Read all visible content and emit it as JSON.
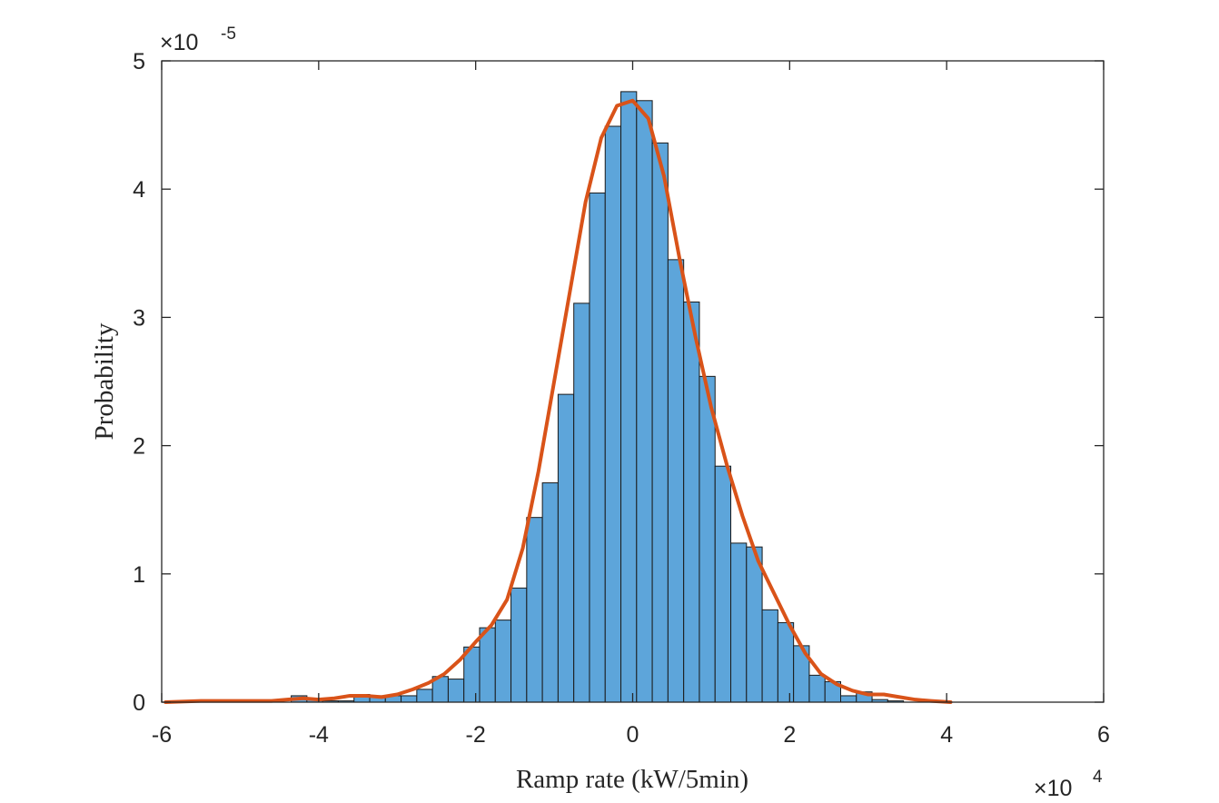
{
  "chart_data": {
    "type": "bar",
    "title": "",
    "xlabel": "Ramp rate (kW/5min)",
    "ylabel": "Probability",
    "x_multiplier": "×10",
    "x_multiplier_exp": "4",
    "y_multiplier": "×10",
    "y_multiplier_exp": "-5",
    "xlim": [
      -6,
      6
    ],
    "ylim": [
      0,
      5
    ],
    "x_ticks": [
      "-6",
      "-4",
      "-2",
      "0",
      "2",
      "4",
      "6"
    ],
    "y_ticks": [
      "0",
      "1",
      "2",
      "3",
      "4",
      "5"
    ],
    "grid": false,
    "legend": false,
    "histogram": {
      "bin_start": -4.35,
      "bin_width": 0.2,
      "values": [
        0.05,
        0.02,
        0.01,
        0.01,
        0.06,
        0.05,
        0.05,
        0.05,
        0.1,
        0.2,
        0.18,
        0.43,
        0.58,
        0.64,
        0.89,
        1.44,
        1.71,
        2.4,
        3.11,
        3.97,
        4.49,
        4.76,
        4.69,
        4.36,
        3.45,
        3.12,
        2.54,
        1.84,
        1.24,
        1.21,
        0.72,
        0.62,
        0.44,
        0.21,
        0.16,
        0.05,
        0.08,
        0.02,
        0.01
      ],
      "color": "#5DA5DA",
      "edge_color": "#1a1a1a"
    },
    "series": [
      {
        "type": "line",
        "color": "#D95319",
        "x": [
          -5.95,
          -5.5,
          -5.0,
          -4.6,
          -4.4,
          -4.2,
          -4.0,
          -3.8,
          -3.6,
          -3.4,
          -3.2,
          -3.0,
          -2.8,
          -2.6,
          -2.4,
          -2.2,
          -2.0,
          -1.8,
          -1.6,
          -1.4,
          -1.2,
          -1.0,
          -0.8,
          -0.6,
          -0.4,
          -0.2,
          0.0,
          0.2,
          0.4,
          0.6,
          0.8,
          1.0,
          1.2,
          1.4,
          1.6,
          1.8,
          2.0,
          2.2,
          2.4,
          2.6,
          2.8,
          3.0,
          3.2,
          3.4,
          3.6,
          3.8,
          4.05
        ],
        "y": [
          0.0,
          0.01,
          0.01,
          0.01,
          0.02,
          0.03,
          0.02,
          0.03,
          0.05,
          0.05,
          0.04,
          0.06,
          0.1,
          0.15,
          0.22,
          0.33,
          0.47,
          0.6,
          0.8,
          1.2,
          1.8,
          2.5,
          3.2,
          3.9,
          4.4,
          4.65,
          4.69,
          4.55,
          4.1,
          3.45,
          2.85,
          2.3,
          1.85,
          1.45,
          1.1,
          0.85,
          0.6,
          0.38,
          0.22,
          0.14,
          0.09,
          0.06,
          0.06,
          0.04,
          0.02,
          0.01,
          0.0
        ]
      }
    ]
  }
}
